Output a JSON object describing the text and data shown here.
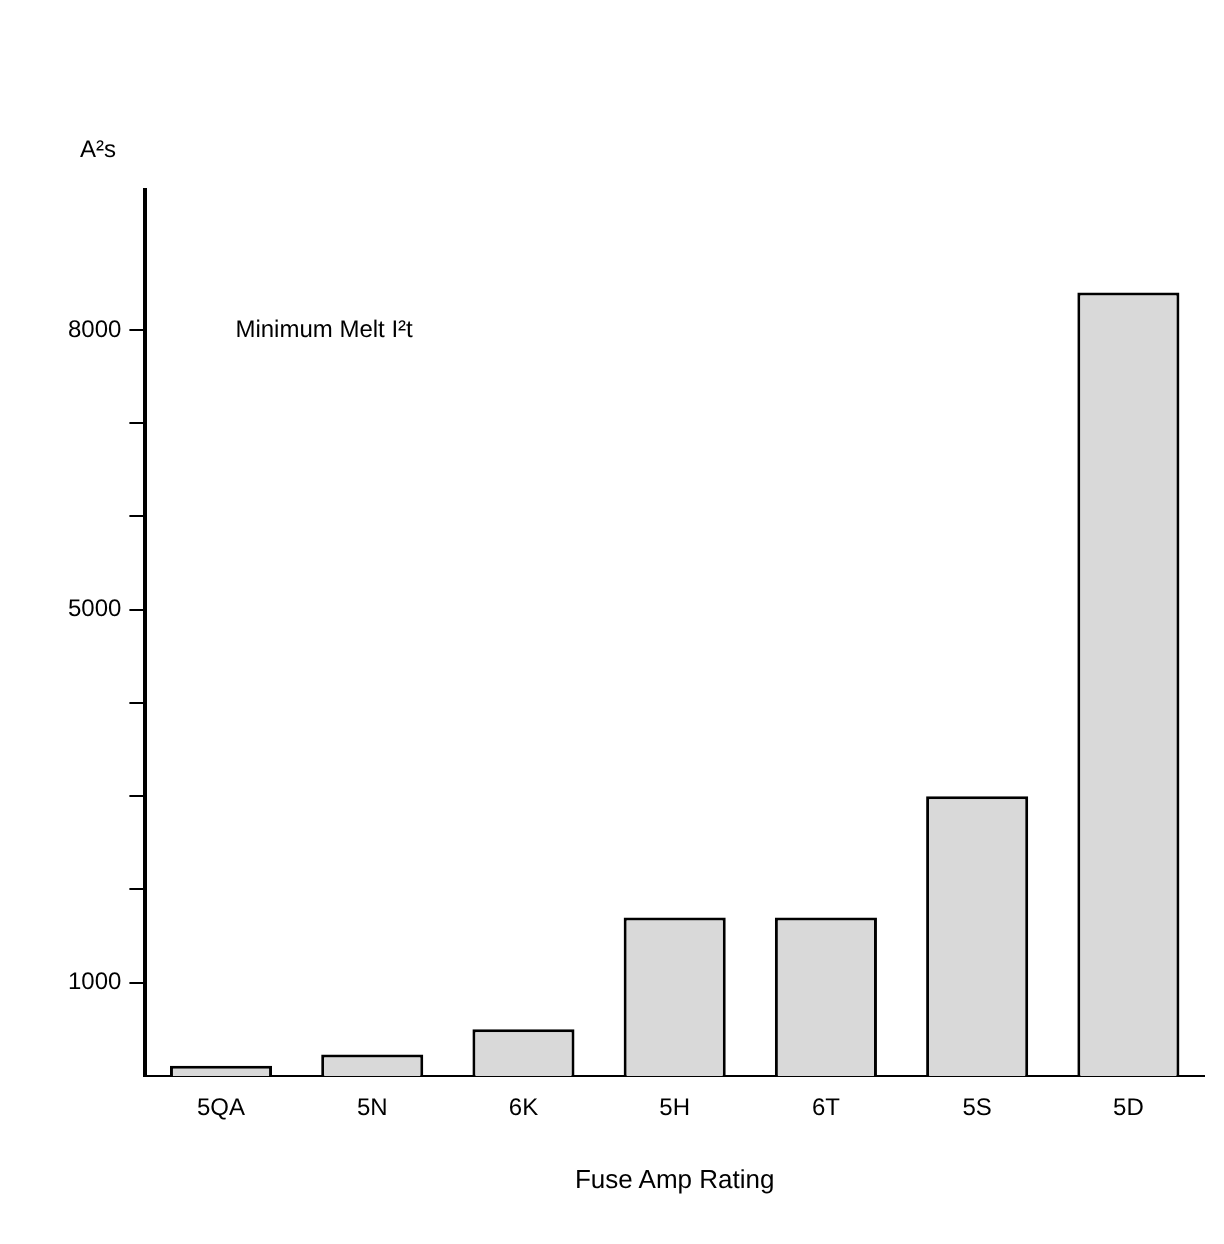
{
  "chart_data": {
    "type": "bar",
    "categories": [
      "5QA",
      "5N",
      "6K",
      "5H",
      "6T",
      "5S",
      "5D"
    ],
    "values": [
      110,
      230,
      500,
      1700,
      1700,
      3000,
      8400
    ],
    "color": "#d9d9d9",
    "xlabel": "Fuse Amp Rating",
    "ylabel": "A²s",
    "annotations": [
      "Minimum Melt I²t"
    ],
    "ylim": [
      0,
      9500
    ],
    "yticks": [
      {
        "value": 1000,
        "label": "1000"
      },
      {
        "value": 2000,
        "label": null
      },
      {
        "value": 3000,
        "label": null
      },
      {
        "value": 4000,
        "label": null
      },
      {
        "value": 5000,
        "label": "5000"
      },
      {
        "value": 6000,
        "label": null
      },
      {
        "value": 7000,
        "label": null
      },
      {
        "value": 8000,
        "label": "8000"
      }
    ],
    "grid": false,
    "legend": false
  }
}
